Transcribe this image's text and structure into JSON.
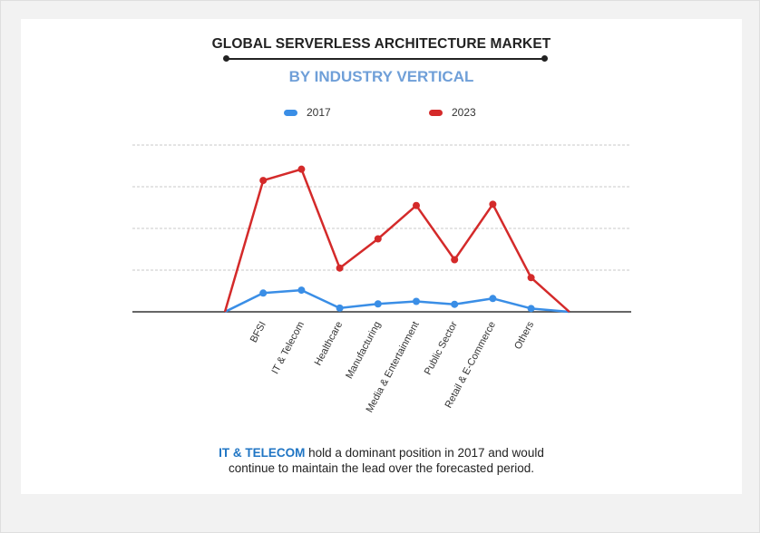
{
  "header": {
    "title": "GLOBAL SERVERLESS ARCHITECTURE MARKET",
    "subtitle": "BY INDUSTRY VERTICAL"
  },
  "caption": {
    "highlight": "IT & TELECOM",
    "line1_rest": " hold a dominant position in 2017 and would",
    "line2": "continue to maintain the lead over the forecasted period."
  },
  "chart_data": {
    "type": "line",
    "title": "GLOBAL SERVERLESS ARCHITECTURE MARKET",
    "subtitle": "BY INDUSTRY VERTICAL",
    "categories": [
      "",
      "BFSI",
      "IT & Telecom",
      "Healthcare",
      "Manufacturing",
      "Media & Entertainment",
      "Public Sector",
      "Retail & E-Commerce",
      "Others",
      ""
    ],
    "series": [
      {
        "name": "2017",
        "color": "#3a8ee6",
        "values": [
          0,
          0.45,
          0.52,
          0.09,
          0.19,
          0.25,
          0.18,
          0.32,
          0.08,
          0
        ]
      },
      {
        "name": "2023",
        "color": "#d42a2a",
        "values": [
          0,
          3.15,
          3.42,
          1.05,
          1.75,
          2.55,
          1.25,
          2.58,
          0.82,
          0
        ]
      }
    ],
    "ylim": [
      0,
      4
    ],
    "grid": true,
    "legend": "top-center",
    "xlabel": "",
    "ylabel": ""
  }
}
